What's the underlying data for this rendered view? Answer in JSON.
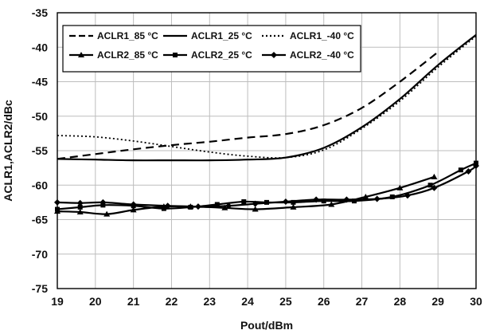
{
  "chart_data": {
    "type": "line",
    "xlabel": "Pout/dBm",
    "ylabel": "ACLR1,ACLR2/dBc",
    "xlim": [
      19,
      30
    ],
    "ylim": [
      -75,
      -35
    ],
    "x_ticks": [
      "19",
      "20",
      "21",
      "22",
      "23",
      "24",
      "25",
      "26",
      "27",
      "28",
      "29",
      "30"
    ],
    "y_ticks": [
      "-35",
      "-40",
      "-45",
      "-50",
      "-55",
      "-60",
      "-65",
      "-70",
      "-75"
    ],
    "grid": true,
    "legend_position": "top-left",
    "series": [
      {
        "name": "ACLR1_85 °C",
        "style": "dashed",
        "marker": "none",
        "x": [
          19,
          20,
          21,
          22,
          23,
          24,
          25,
          26,
          27,
          28,
          29
        ],
        "y": [
          -56.2,
          -55.5,
          -54.8,
          -54.2,
          -53.7,
          -53.1,
          -52.6,
          -51.3,
          -48.8,
          -45,
          -40.7
        ]
      },
      {
        "name": "ACLR1_25 °C",
        "style": "solid",
        "marker": "none",
        "x": [
          19,
          20,
          21,
          22,
          23,
          24,
          25,
          26,
          27,
          28,
          29,
          30
        ],
        "y": [
          -56.2,
          -56.3,
          -56.4,
          -56.4,
          -56.4,
          -56.3,
          -56,
          -54.6,
          -51.6,
          -47.5,
          -42.6,
          -38.2
        ]
      },
      {
        "name": "ACLR1_-40 °C",
        "style": "dotted",
        "marker": "none",
        "x": [
          19,
          20,
          21,
          22,
          23,
          24,
          25,
          26,
          27,
          28,
          29,
          30
        ],
        "y": [
          -52.8,
          -53,
          -53.6,
          -54.4,
          -55.2,
          -55.8,
          -56,
          -54.9,
          -51.8,
          -47.8,
          -42.9,
          -38.4
        ]
      },
      {
        "name": "ACLR2_85 °C",
        "style": "solid",
        "marker": "triangle",
        "x": [
          19,
          19.6,
          20.3,
          21,
          21.8,
          22.5,
          23.4,
          24.2,
          25.2,
          26.2,
          27.1,
          28,
          28.9
        ],
        "y": [
          -63.8,
          -63.9,
          -64.2,
          -63.6,
          -63.1,
          -63.1,
          -63.3,
          -63.5,
          -63.2,
          -62.8,
          -61.7,
          -60.4,
          -58.8
        ]
      },
      {
        "name": "ACLR2_25 °C",
        "style": "solid",
        "marker": "square",
        "x": [
          19,
          19.6,
          20.2,
          21,
          21.8,
          22.5,
          23.2,
          23.9,
          24.5,
          25.2,
          26,
          26.8,
          27.8,
          28.8,
          29.6,
          30
        ],
        "y": [
          -63.5,
          -63.2,
          -62.9,
          -63,
          -63.4,
          -63.2,
          -62.8,
          -62.4,
          -62.5,
          -62.5,
          -62.3,
          -62.3,
          -61.7,
          -60,
          -57.8,
          -56.8
        ]
      },
      {
        "name": "ACLR2_-40 °C",
        "style": "solid",
        "marker": "diamond",
        "x": [
          19,
          19.6,
          20.2,
          21,
          21.9,
          22.7,
          23.5,
          24.2,
          25,
          25.8,
          26.6,
          27.4,
          28.2,
          28.9,
          29.8,
          30
        ],
        "y": [
          -62.5,
          -62.6,
          -62.5,
          -62.8,
          -63,
          -63.1,
          -63,
          -62.7,
          -62.4,
          -62.1,
          -62.1,
          -62,
          -61.5,
          -60.4,
          -58,
          -57.2
        ]
      }
    ]
  }
}
